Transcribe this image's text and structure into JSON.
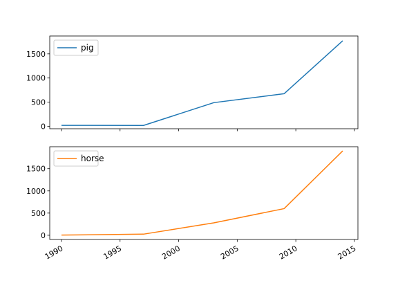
{
  "chart_data": [
    {
      "type": "line",
      "title": "",
      "xlabel": "",
      "ylabel": "",
      "x": [
        1990,
        1997,
        2003,
        2009,
        2014
      ],
      "xlim": [
        1989.0,
        2015.3
      ],
      "ylim": [
        -50,
        1870
      ],
      "yticks": [
        0,
        500,
        1000,
        1500
      ],
      "xticks": [
        1990,
        1995,
        2000,
        2005,
        2010,
        2015
      ],
      "show_xtick_labels": false,
      "grid": false,
      "legend_position": "upper-left",
      "series": [
        {
          "name": "pig",
          "color": "#1f77b4",
          "values": [
            20,
            18,
            490,
            675,
            1770
          ]
        }
      ]
    },
    {
      "type": "line",
      "title": "",
      "xlabel": "",
      "ylabel": "",
      "x": [
        1990,
        1997,
        2003,
        2009,
        2014
      ],
      "xlim": [
        1989.0,
        2015.3
      ],
      "ylim": [
        -95,
        1995
      ],
      "yticks": [
        0,
        500,
        1000,
        1500
      ],
      "xticks": [
        1990,
        1995,
        2000,
        2005,
        2010,
        2015
      ],
      "show_xtick_labels": true,
      "xtick_rotation": 30,
      "grid": false,
      "legend_position": "upper-left",
      "series": [
        {
          "name": "horse",
          "color": "#ff7f0e",
          "values": [
            4,
            25,
            280,
            600,
            1900
          ]
        }
      ]
    }
  ]
}
